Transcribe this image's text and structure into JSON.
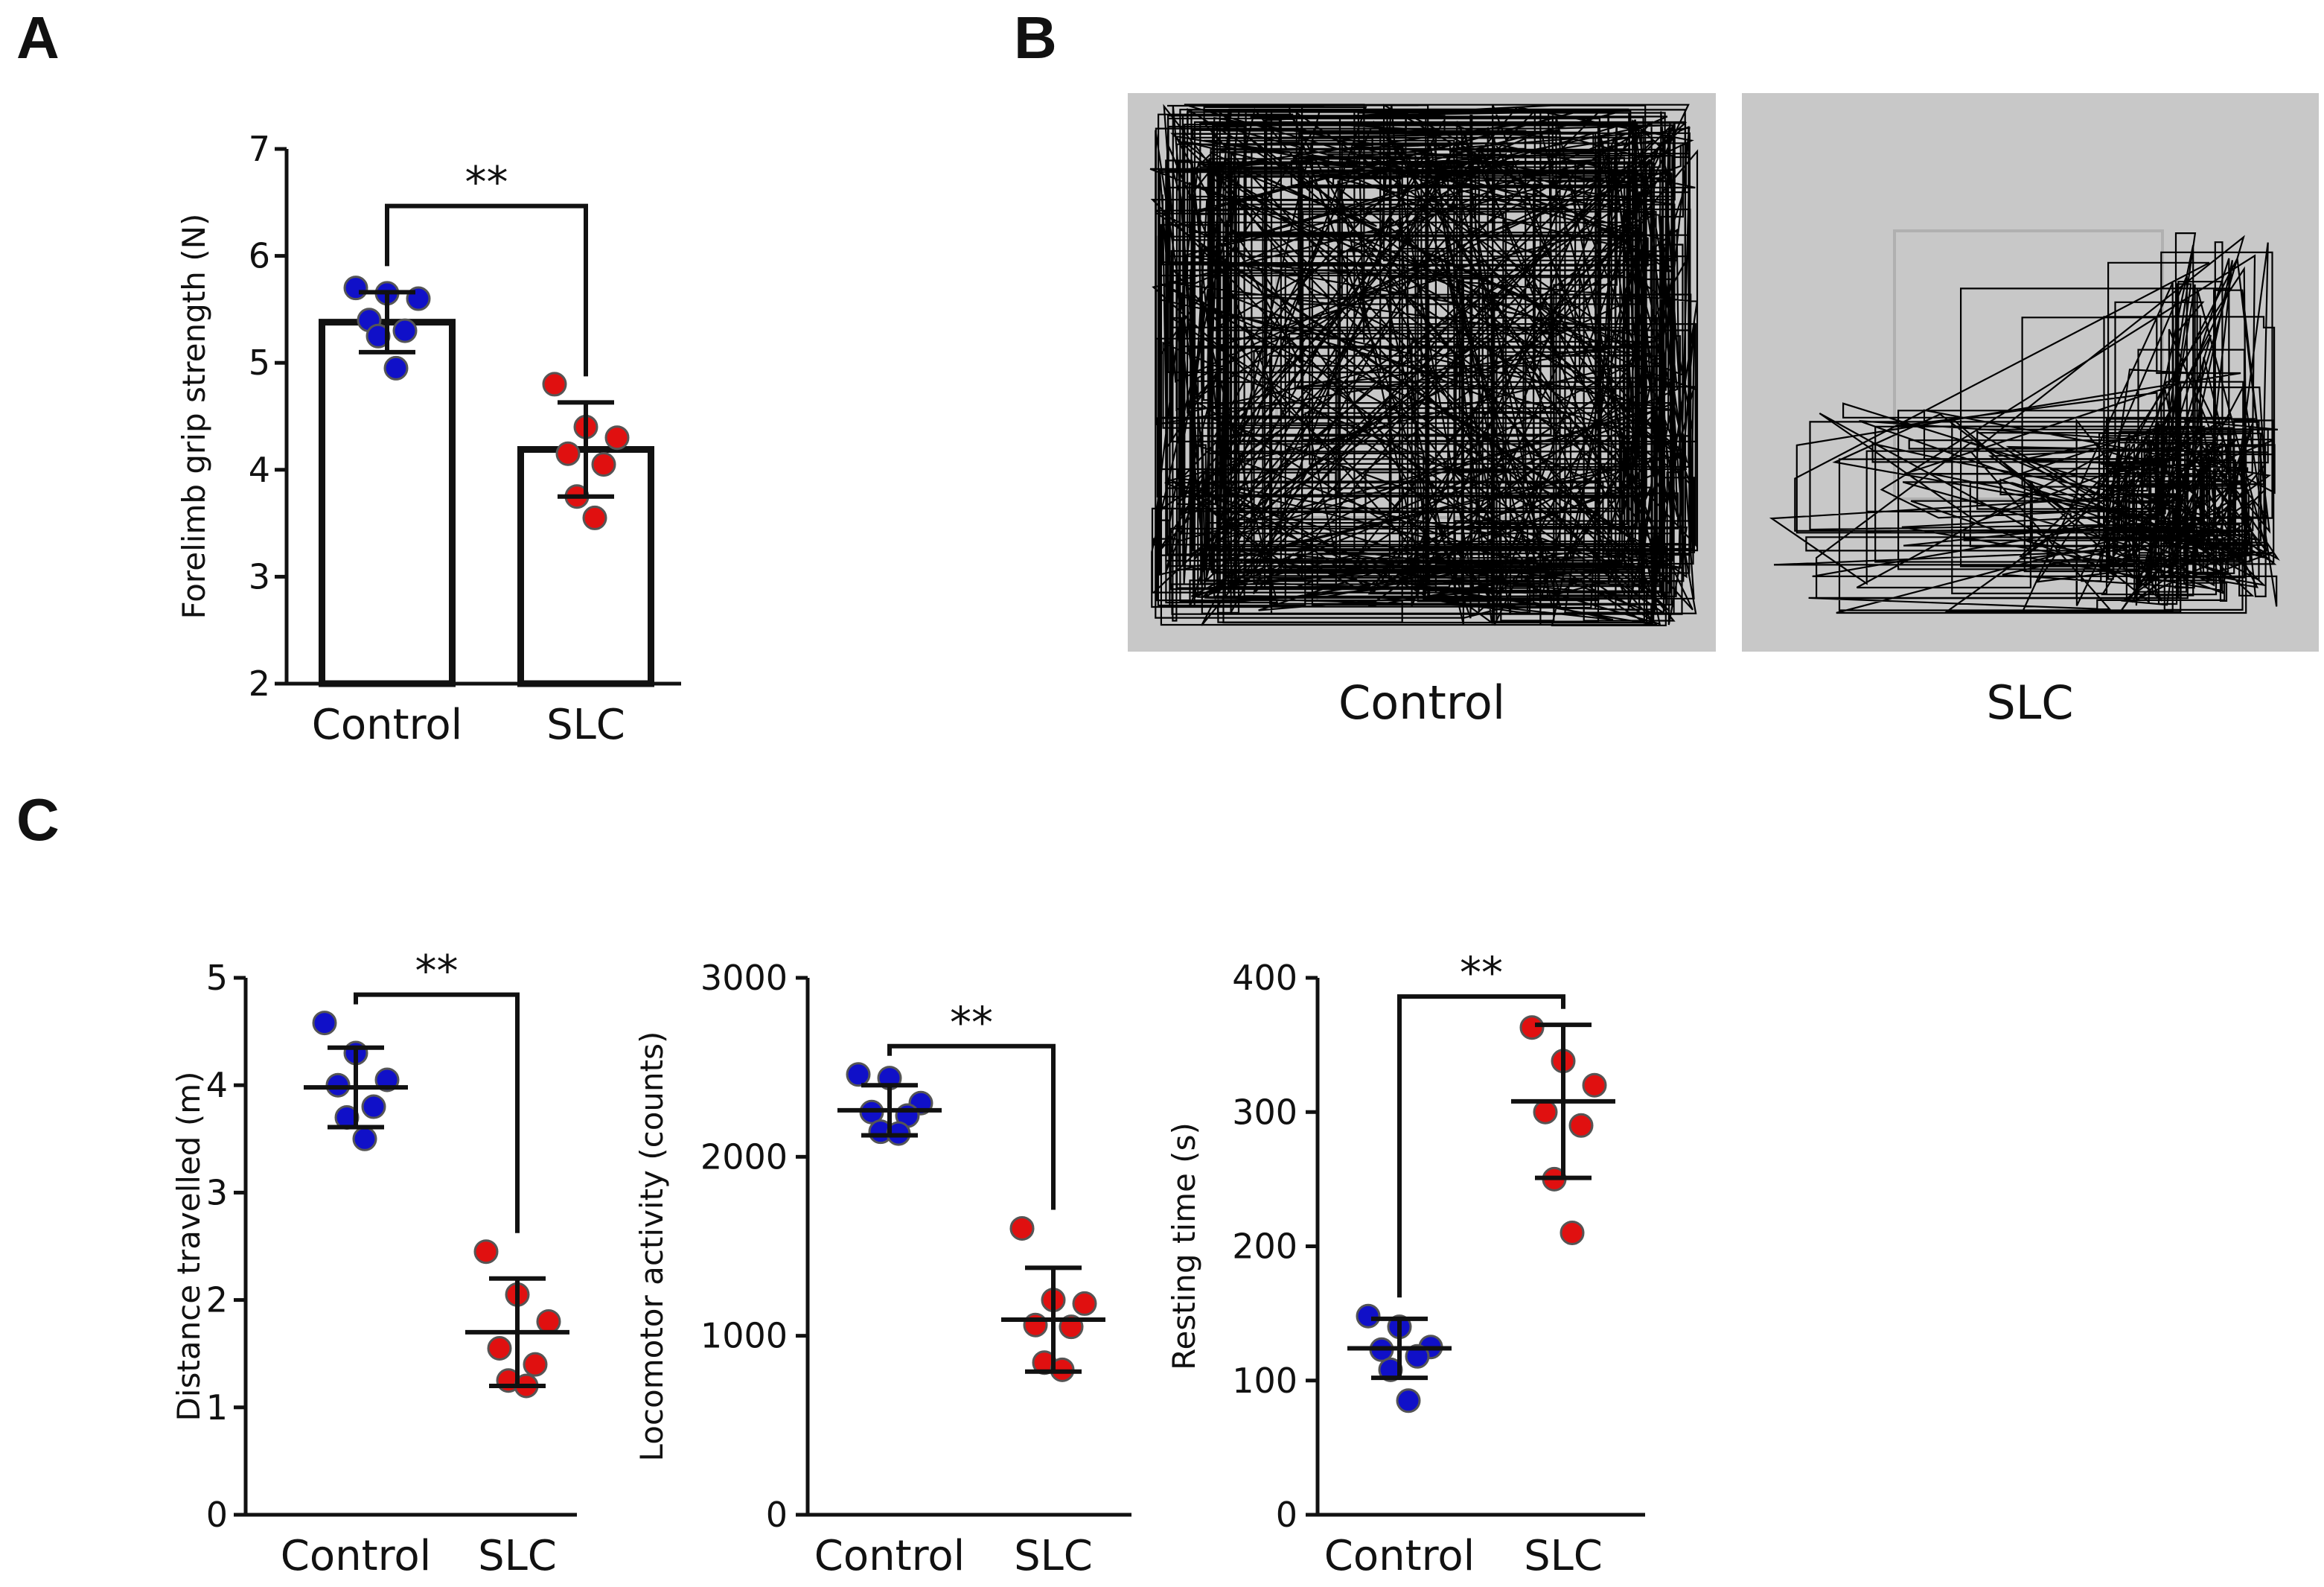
{
  "panels": {
    "A": "A",
    "B": "B",
    "C": "C"
  },
  "colors": {
    "control": "#1010c8",
    "slc": "#e01010",
    "axis": "#111111",
    "arena_bg": "#c8c8c8",
    "track": "#000000"
  },
  "tracks": {
    "control_label": "Control",
    "slc_label": "SLC"
  },
  "chart_data": [
    {
      "panel": "A",
      "type": "bar",
      "categories": [
        "Control",
        "SLC"
      ],
      "means": [
        5.38,
        4.19
      ],
      "sd": [
        0.28,
        0.44
      ],
      "points": [
        [
          5.7,
          5.65,
          5.6,
          5.4,
          5.3,
          5.25,
          4.95
        ],
        [
          4.8,
          4.4,
          4.3,
          4.15,
          4.05,
          3.75,
          3.55
        ]
      ],
      "title": "",
      "xlabel": "",
      "ylabel": "Forelimb grip strength (N)",
      "ylim": [
        2,
        7
      ],
      "yticks": [
        "2",
        "3",
        "4",
        "5",
        "6",
        "7"
      ],
      "significance": "**",
      "grid": false
    },
    {
      "panel": "C",
      "type": "scatter",
      "categories": [
        "Control",
        "SLC"
      ],
      "means": [
        3.98,
        1.7
      ],
      "sd": [
        0.37,
        0.5
      ],
      "points": [
        [
          4.58,
          4.3,
          4.05,
          4.0,
          3.8,
          3.7,
          3.5
        ],
        [
          2.45,
          2.05,
          1.8,
          1.55,
          1.4,
          1.25,
          1.2
        ]
      ],
      "title": "",
      "xlabel": "",
      "ylabel": "Distance travelled (m)",
      "ylim": [
        0,
        5
      ],
      "yticks": [
        "0",
        "1",
        "2",
        "3",
        "4",
        "5"
      ],
      "significance": "**",
      "grid": false
    },
    {
      "panel": "C",
      "type": "scatter",
      "categories": [
        "Control",
        "SLC"
      ],
      "means": [
        2260,
        1090
      ],
      "sd": [
        140,
        290
      ],
      "points": [
        [
          2460,
          2440,
          2300,
          2250,
          2230,
          2140,
          2130
        ],
        [
          1600,
          1200,
          1180,
          1060,
          1050,
          850,
          810
        ]
      ],
      "title": "",
      "xlabel": "",
      "ylabel": "Locomotor activity (counts)",
      "ylim": [
        0,
        3000
      ],
      "yticks": [
        "0",
        "1000",
        "2000",
        "3000"
      ],
      "significance": "**",
      "grid": false
    },
    {
      "panel": "C",
      "type": "scatter",
      "categories": [
        "Control",
        "SLC"
      ],
      "means": [
        124,
        308
      ],
      "sd": [
        22,
        57
      ],
      "points": [
        [
          148,
          140,
          125,
          123,
          118,
          108,
          85
        ],
        [
          363,
          338,
          320,
          300,
          290,
          250,
          210
        ]
      ],
      "title": "",
      "xlabel": "",
      "ylabel": "Resting time (s)",
      "ylim": [
        0,
        400
      ],
      "yticks": [
        "0",
        "100",
        "200",
        "300",
        "400"
      ],
      "significance": "**",
      "grid": false
    }
  ]
}
